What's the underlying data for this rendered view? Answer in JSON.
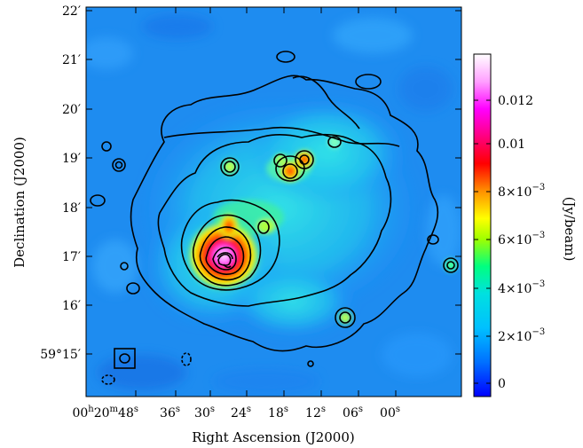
{
  "image": {
    "type": "radio continuum map with contours",
    "colormap": [
      "#0000ff",
      "#00a8ff",
      "#00e0e0",
      "#00ff80",
      "#ffff00",
      "#ff8000",
      "#ff0000",
      "#ff00ff",
      "#ffffff"
    ]
  },
  "x_axis": {
    "title": "Right Ascension (J2000)",
    "ticks": [
      {
        "h": "00",
        "hu": "h",
        "m": "20",
        "mu": "m",
        "s": "48",
        "su": "s"
      },
      {
        "s": "36",
        "su": "s"
      },
      {
        "s": "30",
        "su": "s"
      },
      {
        "s": "24",
        "su": "s"
      },
      {
        "s": "18",
        "su": "s"
      },
      {
        "s": "12",
        "su": "s"
      },
      {
        "s": "06",
        "su": "s"
      },
      {
        "s": "00",
        "su": "s"
      }
    ]
  },
  "y_axis": {
    "title": "Declination (J2000)",
    "ticks": [
      "22′",
      "21′",
      "20′",
      "19′",
      "18′",
      "17′",
      "16′",
      "59°15′"
    ]
  },
  "colorbar": {
    "label": "(Jy/beam)",
    "ticks": [
      {
        "text": "0.012"
      },
      {
        "text": "0.01"
      },
      {
        "base": "8×10",
        "exp": "−3"
      },
      {
        "base": "6×10",
        "exp": "−3"
      },
      {
        "base": "4×10",
        "exp": "−3"
      },
      {
        "base": "2×10",
        "exp": "−3"
      },
      {
        "text": "0"
      }
    ]
  }
}
